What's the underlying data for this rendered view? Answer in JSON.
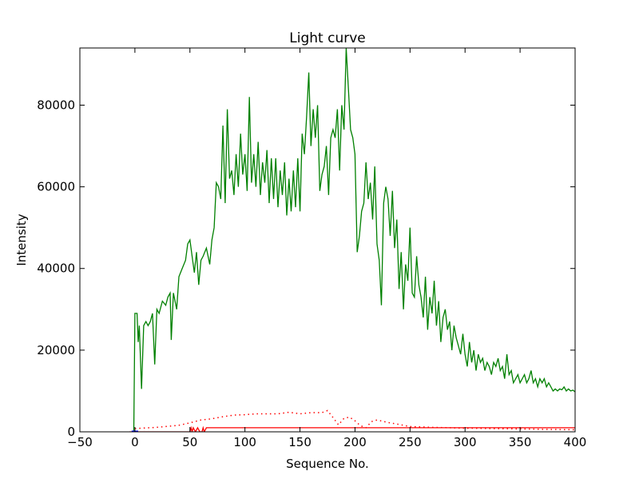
{
  "chart_data": {
    "type": "line",
    "title": "Light curve",
    "xlabel": "Sequence No.",
    "ylabel": "Intensity",
    "xlim": [
      -50,
      400
    ],
    "ylim": [
      0,
      94000
    ],
    "xticks": [
      -50,
      0,
      50,
      100,
      150,
      200,
      250,
      300,
      350,
      400
    ],
    "yticks": [
      0,
      20000,
      40000,
      60000,
      80000
    ],
    "grid": false,
    "series": [
      {
        "name": "green",
        "color": "#008000",
        "style": "solid",
        "points": [
          [
            -1,
            0
          ],
          [
            0,
            29000
          ],
          [
            2,
            29000
          ],
          [
            3,
            22000
          ],
          [
            4,
            26000
          ],
          [
            6,
            10500
          ],
          [
            8,
            26000
          ],
          [
            10,
            27000
          ],
          [
            12,
            26000
          ],
          [
            14,
            27000
          ],
          [
            16,
            29000
          ],
          [
            18,
            16500
          ],
          [
            20,
            30000
          ],
          [
            22,
            29000
          ],
          [
            25,
            32000
          ],
          [
            28,
            31000
          ],
          [
            30,
            33000
          ],
          [
            32,
            34000
          ],
          [
            33,
            22500
          ],
          [
            35,
            34000
          ],
          [
            38,
            30000
          ],
          [
            40,
            38000
          ],
          [
            43,
            40000
          ],
          [
            46,
            42000
          ],
          [
            48,
            46000
          ],
          [
            50,
            47000
          ],
          [
            52,
            43000
          ],
          [
            54,
            39000
          ],
          [
            56,
            44000
          ],
          [
            58,
            36000
          ],
          [
            60,
            42000
          ],
          [
            62,
            43000
          ],
          [
            65,
            45000
          ],
          [
            68,
            41000
          ],
          [
            70,
            47000
          ],
          [
            72,
            50000
          ],
          [
            74,
            61000
          ],
          [
            76,
            60000
          ],
          [
            78,
            57000
          ],
          [
            80,
            75000
          ],
          [
            82,
            56000
          ],
          [
            84,
            79000
          ],
          [
            86,
            62000
          ],
          [
            88,
            64000
          ],
          [
            90,
            58000
          ],
          [
            92,
            68000
          ],
          [
            94,
            60000
          ],
          [
            96,
            73000
          ],
          [
            98,
            63000
          ],
          [
            100,
            68000
          ],
          [
            102,
            59000
          ],
          [
            104,
            82000
          ],
          [
            106,
            61000
          ],
          [
            108,
            68000
          ],
          [
            110,
            60000
          ],
          [
            112,
            71000
          ],
          [
            114,
            58000
          ],
          [
            116,
            66000
          ],
          [
            118,
            61000
          ],
          [
            120,
            69000
          ],
          [
            122,
            56000
          ],
          [
            124,
            67000
          ],
          [
            126,
            57000
          ],
          [
            128,
            67000
          ],
          [
            130,
            55000
          ],
          [
            132,
            64000
          ],
          [
            134,
            58000
          ],
          [
            136,
            66000
          ],
          [
            138,
            53000
          ],
          [
            140,
            62000
          ],
          [
            142,
            54000
          ],
          [
            144,
            64000
          ],
          [
            146,
            55000
          ],
          [
            148,
            67000
          ],
          [
            150,
            54000
          ],
          [
            152,
            73000
          ],
          [
            154,
            68000
          ],
          [
            156,
            77000
          ],
          [
            158,
            88000
          ],
          [
            160,
            70000
          ],
          [
            162,
            79000
          ],
          [
            164,
            72000
          ],
          [
            166,
            80000
          ],
          [
            168,
            59000
          ],
          [
            170,
            63000
          ],
          [
            172,
            65000
          ],
          [
            174,
            70000
          ],
          [
            176,
            58000
          ],
          [
            178,
            72000
          ],
          [
            180,
            74000
          ],
          [
            182,
            72000
          ],
          [
            184,
            79000
          ],
          [
            186,
            64000
          ],
          [
            188,
            80000
          ],
          [
            190,
            74000
          ],
          [
            192,
            94000
          ],
          [
            194,
            84000
          ],
          [
            196,
            74000
          ],
          [
            198,
            72000
          ],
          [
            200,
            68000
          ],
          [
            202,
            44000
          ],
          [
            204,
            48000
          ],
          [
            206,
            54000
          ],
          [
            208,
            56000
          ],
          [
            210,
            66000
          ],
          [
            212,
            57000
          ],
          [
            214,
            61000
          ],
          [
            216,
            52000
          ],
          [
            218,
            65000
          ],
          [
            220,
            46000
          ],
          [
            222,
            42000
          ],
          [
            224,
            31000
          ],
          [
            226,
            56000
          ],
          [
            228,
            60000
          ],
          [
            230,
            57000
          ],
          [
            232,
            48000
          ],
          [
            234,
            59000
          ],
          [
            236,
            45000
          ],
          [
            238,
            52000
          ],
          [
            240,
            35000
          ],
          [
            242,
            44000
          ],
          [
            244,
            30000
          ],
          [
            246,
            41000
          ],
          [
            248,
            37000
          ],
          [
            250,
            50000
          ],
          [
            252,
            34000
          ],
          [
            254,
            33000
          ],
          [
            256,
            43000
          ],
          [
            258,
            36000
          ],
          [
            260,
            33000
          ],
          [
            262,
            28000
          ],
          [
            264,
            38000
          ],
          [
            266,
            25000
          ],
          [
            268,
            33000
          ],
          [
            270,
            29000
          ],
          [
            272,
            37000
          ],
          [
            274,
            26000
          ],
          [
            276,
            32000
          ],
          [
            278,
            22000
          ],
          [
            280,
            28000
          ],
          [
            282,
            30000
          ],
          [
            284,
            25000
          ],
          [
            286,
            27000
          ],
          [
            288,
            20000
          ],
          [
            290,
            26000
          ],
          [
            292,
            23000
          ],
          [
            294,
            21000
          ],
          [
            296,
            19000
          ],
          [
            298,
            24000
          ],
          [
            300,
            19000
          ],
          [
            302,
            16000
          ],
          [
            304,
            22000
          ],
          [
            306,
            17000
          ],
          [
            308,
            20000
          ],
          [
            310,
            15000
          ],
          [
            312,
            19000
          ],
          [
            314,
            17000
          ],
          [
            316,
            18000
          ],
          [
            318,
            15000
          ],
          [
            320,
            17000
          ],
          [
            322,
            16000
          ],
          [
            324,
            14000
          ],
          [
            326,
            17000
          ],
          [
            328,
            16000
          ],
          [
            330,
            18000
          ],
          [
            332,
            15000
          ],
          [
            334,
            16000
          ],
          [
            336,
            13000
          ],
          [
            338,
            19000
          ],
          [
            340,
            14000
          ],
          [
            342,
            15000
          ],
          [
            344,
            12000
          ],
          [
            346,
            13000
          ],
          [
            348,
            14000
          ],
          [
            350,
            12000
          ],
          [
            352,
            13000
          ],
          [
            354,
            14000
          ],
          [
            356,
            12000
          ],
          [
            358,
            13000
          ],
          [
            360,
            15000
          ],
          [
            362,
            12000
          ],
          [
            364,
            13000
          ],
          [
            366,
            11000
          ],
          [
            368,
            13000
          ],
          [
            370,
            12000
          ],
          [
            372,
            13000
          ],
          [
            374,
            11000
          ],
          [
            376,
            12000
          ],
          [
            378,
            11000
          ],
          [
            380,
            10000
          ],
          [
            382,
            10500
          ],
          [
            384,
            10000
          ],
          [
            386,
            10500
          ],
          [
            388,
            10300
          ],
          [
            390,
            11000
          ],
          [
            392,
            10000
          ],
          [
            394,
            10500
          ],
          [
            396,
            10000
          ],
          [
            398,
            10200
          ],
          [
            400,
            9800
          ]
        ]
      },
      {
        "name": "red-solid",
        "color": "#ff0000",
        "style": "solid",
        "points": [
          [
            -5,
            0
          ],
          [
            50,
            0
          ],
          [
            51,
            1000
          ],
          [
            52,
            0
          ],
          [
            53,
            1000
          ],
          [
            55,
            0
          ],
          [
            57,
            1000
          ],
          [
            59,
            0
          ],
          [
            61,
            0
          ],
          [
            62,
            1000
          ],
          [
            63,
            0
          ],
          [
            65,
            1000
          ],
          [
            400,
            1000
          ]
        ]
      },
      {
        "name": "red-dotted",
        "color": "#ff0000",
        "style": "dotted",
        "points": [
          [
            0,
            800
          ],
          [
            20,
            1100
          ],
          [
            40,
            1600
          ],
          [
            50,
            2200
          ],
          [
            60,
            2900
          ],
          [
            70,
            3200
          ],
          [
            80,
            3700
          ],
          [
            90,
            4100
          ],
          [
            100,
            4200
          ],
          [
            110,
            4400
          ],
          [
            120,
            4400
          ],
          [
            130,
            4400
          ],
          [
            140,
            4800
          ],
          [
            150,
            4400
          ],
          [
            160,
            4700
          ],
          [
            170,
            4700
          ],
          [
            175,
            5200
          ],
          [
            180,
            3500
          ],
          [
            185,
            1700
          ],
          [
            190,
            3300
          ],
          [
            195,
            3600
          ],
          [
            200,
            2700
          ],
          [
            205,
            1500
          ],
          [
            210,
            1000
          ],
          [
            215,
            2500
          ],
          [
            220,
            2900
          ],
          [
            230,
            2300
          ],
          [
            240,
            1800
          ],
          [
            250,
            1300
          ],
          [
            270,
            1100
          ],
          [
            300,
            900
          ],
          [
            350,
            700
          ],
          [
            400,
            500
          ]
        ]
      },
      {
        "name": "blue",
        "color": "#0000ff",
        "style": "solid",
        "points": [
          [
            -3,
            0
          ],
          [
            3,
            0
          ]
        ]
      }
    ]
  }
}
